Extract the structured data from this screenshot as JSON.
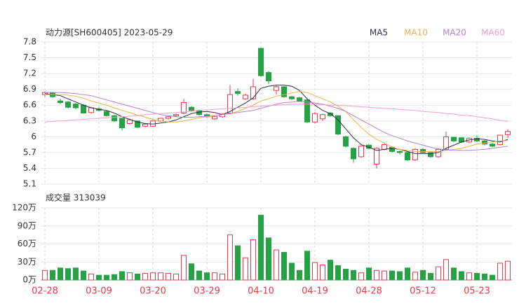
{
  "chart_data": [
    {
      "type": "candlestick",
      "title": "动力源[SH600405] 2023-05-29",
      "categories": [
        "02-28",
        null,
        null,
        null,
        null,
        null,
        null,
        "03-09",
        null,
        null,
        null,
        null,
        null,
        null,
        "03-20",
        null,
        null,
        null,
        null,
        null,
        null,
        "03-29",
        null,
        null,
        null,
        null,
        null,
        null,
        "04-10",
        null,
        null,
        null,
        null,
        null,
        null,
        "04-19",
        null,
        null,
        null,
        null,
        null,
        null,
        "04-28",
        null,
        null,
        null,
        null,
        null,
        null,
        "05-12",
        null,
        null,
        null,
        null,
        null,
        null,
        "05-23",
        null,
        null,
        null,
        null
      ],
      "open": [
        6.8,
        6.83,
        6.68,
        6.66,
        6.62,
        6.6,
        6.46,
        6.53,
        6.48,
        6.4,
        6.35,
        6.25,
        6.3,
        6.2,
        6.2,
        6.3,
        6.35,
        6.4,
        6.45,
        6.56,
        6.5,
        6.42,
        6.34,
        6.38,
        6.45,
        6.86,
        6.72,
        6.72,
        7.68,
        7.22,
        6.88,
        6.95,
        6.76,
        6.74,
        6.7,
        6.28,
        6.34,
        6.45,
        6.4,
        6.0,
        5.78,
        5.62,
        5.84,
        5.48,
        5.76,
        5.8,
        5.72,
        5.7,
        5.56,
        5.76,
        5.7,
        5.62,
        5.76,
        5.99,
        5.98,
        5.9,
        5.97,
        5.92,
        5.86,
        5.85,
        6.04
      ],
      "high": [
        6.86,
        6.85,
        6.72,
        6.68,
        6.64,
        6.62,
        6.57,
        6.56,
        6.5,
        6.42,
        6.36,
        6.34,
        6.31,
        6.26,
        6.31,
        6.36,
        6.4,
        6.44,
        6.72,
        6.58,
        6.52,
        6.44,
        6.4,
        6.45,
        6.98,
        6.92,
        6.82,
        7.1,
        7.68,
        7.25,
        6.98,
        6.96,
        6.78,
        6.76,
        6.72,
        6.47,
        6.44,
        6.47,
        6.41,
        6.02,
        5.8,
        5.84,
        5.86,
        5.8,
        5.87,
        5.82,
        5.74,
        5.72,
        5.78,
        5.78,
        5.71,
        5.78,
        6.1,
        6.0,
        5.99,
        5.99,
        6.02,
        5.94,
        5.88,
        6.04,
        6.14
      ],
      "low": [
        6.76,
        6.74,
        6.62,
        6.54,
        6.52,
        6.44,
        6.44,
        6.48,
        6.38,
        6.28,
        6.12,
        6.23,
        6.16,
        6.18,
        6.19,
        6.28,
        6.33,
        6.38,
        6.43,
        6.48,
        6.4,
        6.36,
        6.32,
        6.36,
        6.43,
        6.78,
        6.7,
        6.7,
        7.14,
        7.0,
        6.8,
        6.74,
        6.7,
        6.66,
        6.26,
        6.25,
        6.3,
        6.38,
        6.03,
        5.8,
        5.5,
        5.6,
        5.76,
        5.4,
        5.74,
        5.7,
        5.66,
        5.54,
        5.54,
        5.68,
        5.6,
        5.6,
        5.74,
        5.9,
        5.88,
        5.88,
        5.9,
        5.84,
        5.8,
        5.84,
        5.98
      ],
      "close": [
        6.84,
        6.76,
        6.65,
        6.56,
        6.55,
        6.45,
        6.55,
        6.5,
        6.4,
        6.3,
        6.17,
        6.32,
        6.18,
        6.24,
        6.3,
        6.35,
        6.38,
        6.42,
        6.65,
        6.5,
        6.42,
        6.38,
        6.38,
        6.43,
        6.8,
        6.82,
        6.79,
        6.95,
        7.16,
        7.06,
        6.95,
        6.76,
        6.72,
        6.68,
        6.28,
        6.44,
        6.42,
        6.4,
        6.05,
        5.82,
        5.58,
        5.82,
        5.78,
        5.78,
        5.85,
        5.72,
        5.7,
        5.56,
        5.76,
        5.7,
        5.62,
        5.76,
        6.0,
        5.92,
        5.9,
        5.97,
        5.92,
        5.86,
        5.82,
        6.03,
        6.1
      ],
      "up_color": "#e8394a",
      "down_color": "#25a244",
      "series": [
        {
          "name": "MA5",
          "color": "#2b2f4a",
          "values": [
            6.82,
            6.8,
            6.78,
            6.72,
            6.66,
            6.6,
            6.55,
            6.52,
            6.5,
            6.45,
            6.38,
            6.33,
            6.28,
            6.25,
            6.24,
            6.26,
            6.28,
            6.32,
            6.38,
            6.44,
            6.47,
            6.48,
            6.46,
            6.42,
            6.48,
            6.56,
            6.64,
            6.74,
            6.92,
            6.96,
            6.98,
            6.98,
            6.96,
            6.88,
            6.72,
            6.6,
            6.5,
            6.44,
            6.32,
            6.15,
            5.98,
            5.85,
            5.8,
            5.74,
            5.76,
            5.78,
            5.76,
            5.72,
            5.68,
            5.68,
            5.68,
            5.7,
            5.78,
            5.84,
            5.9,
            5.94,
            5.96,
            5.95,
            5.92,
            5.9,
            5.95
          ]
        },
        {
          "name": "MA10",
          "color": "#f2b04a",
          "values": [
            6.8,
            6.8,
            6.8,
            6.79,
            6.77,
            6.73,
            6.68,
            6.64,
            6.6,
            6.55,
            6.5,
            6.46,
            6.41,
            6.37,
            6.33,
            6.3,
            6.28,
            6.28,
            6.3,
            6.33,
            6.36,
            6.38,
            6.4,
            6.42,
            6.44,
            6.48,
            6.54,
            6.6,
            6.68,
            6.72,
            6.77,
            6.8,
            6.83,
            6.86,
            6.84,
            6.78,
            6.72,
            6.66,
            6.58,
            6.48,
            6.32,
            6.18,
            6.05,
            5.95,
            5.88,
            5.8,
            5.76,
            5.74,
            5.72,
            5.72,
            5.72,
            5.72,
            5.74,
            5.76,
            5.78,
            5.82,
            5.86,
            5.88,
            5.9,
            5.92,
            5.93
          ]
        },
        {
          "name": "MA20",
          "color": "#b77fd6",
          "values": [
            6.84,
            6.84,
            6.84,
            6.83,
            6.82,
            6.8,
            6.78,
            6.74,
            6.7,
            6.66,
            6.62,
            6.58,
            6.54,
            6.5,
            6.46,
            6.42,
            6.4,
            6.38,
            6.37,
            6.37,
            6.38,
            6.39,
            6.4,
            6.42,
            6.44,
            6.46,
            6.48,
            6.5,
            6.54,
            6.58,
            6.62,
            6.65,
            6.66,
            6.67,
            6.66,
            6.64,
            6.62,
            6.58,
            6.54,
            6.48,
            6.4,
            6.32,
            6.24,
            6.16,
            6.08,
            6.02,
            5.97,
            5.92,
            5.88,
            5.84,
            5.8,
            5.77,
            5.75,
            5.74,
            5.74,
            5.74,
            5.75,
            5.76,
            5.78,
            5.8,
            5.82
          ]
        },
        {
          "name": "MA60",
          "color": "#f3a0cb",
          "values": [
            6.28,
            6.29,
            6.3,
            6.31,
            6.32,
            6.33,
            6.34,
            6.35,
            6.36,
            6.37,
            6.38,
            6.39,
            6.4,
            6.42,
            6.43,
            6.44,
            6.45,
            6.46,
            6.47,
            6.48,
            6.5,
            6.51,
            6.52,
            6.53,
            6.54,
            6.55,
            6.56,
            6.57,
            6.58,
            6.59,
            6.6,
            6.61,
            6.62,
            6.62,
            6.62,
            6.62,
            6.61,
            6.6,
            6.6,
            6.59,
            6.58,
            6.57,
            6.56,
            6.55,
            6.54,
            6.53,
            6.52,
            6.51,
            6.5,
            6.48,
            6.47,
            6.46,
            6.44,
            6.43,
            6.41,
            6.4,
            6.38,
            6.36,
            6.34,
            6.31,
            6.29
          ]
        }
      ],
      "ylim": [
        5.1,
        7.8
      ],
      "yticks": [
        7.8,
        7.5,
        7.2,
        6.9,
        6.6,
        6.3,
        6,
        5.7,
        5.4,
        5.1
      ],
      "grid": true
    },
    {
      "type": "bar",
      "title": "成交量 313039",
      "values": [
        16,
        16,
        20,
        19,
        20,
        15,
        10,
        8,
        8,
        9,
        14,
        12,
        10,
        11,
        12,
        12,
        11,
        10,
        41,
        27,
        15,
        12,
        12,
        10,
        75,
        57,
        37,
        67,
        108,
        70,
        50,
        46,
        28,
        16,
        48,
        29,
        25,
        33,
        24,
        18,
        16,
        12,
        20,
        16,
        15,
        15,
        14,
        20,
        13,
        16,
        11,
        22,
        34,
        20,
        14,
        12,
        11,
        10,
        8,
        28,
        31.3039
      ],
      "ylim": [
        0,
        120
      ],
      "yticks": [
        {
          "value": 120,
          "label": "120万"
        },
        {
          "value": 90,
          "label": "90万"
        },
        {
          "value": 60,
          "label": "60万"
        },
        {
          "value": 30,
          "label": "30万"
        },
        {
          "value": 0,
          "label": "0万"
        }
      ],
      "grid": true
    }
  ]
}
